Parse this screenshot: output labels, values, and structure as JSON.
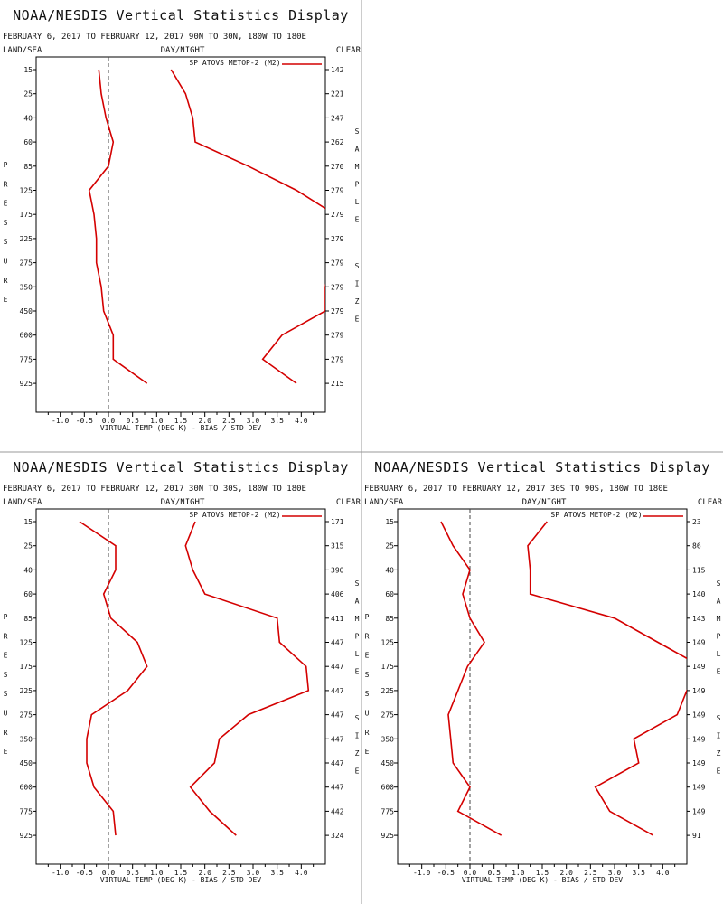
{
  "theme": {
    "series_color": "#d40000"
  },
  "panels": [
    {
      "title": "NOAA/NESDIS Vertical Statistics Display",
      "subtitle": "FEBRUARY 6, 2017 TO FEBRUARY 12, 2017 90N TO 30N, 180W TO 180E",
      "labels": {
        "left": "LAND/SEA",
        "center": "DAY/NIGHT",
        "right": "CLEAR"
      },
      "legend": "SP ATOVS METOP-2 (M2)",
      "ylabel": "PRESSURE",
      "ylabel2": "SAMPLE SIZE",
      "xlabel": "VIRTUAL TEMP (DEG K) - BIAS / STD DEV",
      "chart_data": {
        "type": "line",
        "pressure_levels": [
          "15",
          "25",
          "40",
          "60",
          "85",
          "125",
          "175",
          "225",
          "275",
          "350",
          "450",
          "600",
          "775",
          "925"
        ],
        "xlim": [
          -1.5,
          4.5
        ],
        "xticks": [
          "-1.0",
          "-0.5",
          "0.0",
          "0.5",
          "1.0",
          "1.5",
          "2.0",
          "2.5",
          "3.0",
          "3.5",
          "4.0"
        ],
        "sample_sizes": [
          "142",
          "221",
          "247",
          "262",
          "270",
          "279",
          "279",
          "279",
          "279",
          "279",
          "279",
          "279",
          "279",
          "215"
        ],
        "series": [
          {
            "kind": "bias",
            "values": [
              -0.2,
              -0.15,
              -0.05,
              0.1,
              0.0,
              -0.4,
              -0.3,
              -0.25,
              -0.25,
              -0.15,
              -0.1,
              0.1,
              0.1,
              0.8
            ]
          },
          {
            "kind": "std",
            "values": [
              1.3,
              1.6,
              1.75,
              1.8,
              2.9,
              3.9,
              4.7,
              4.7,
              4.6,
              4.5,
              4.5,
              3.6,
              3.2,
              3.9
            ]
          }
        ]
      }
    },
    {
      "title": "NOAA/NESDIS Vertical Statistics Display",
      "subtitle": "FEBRUARY 6, 2017 TO FEBRUARY 12, 2017 30N TO 30S, 180W TO 180E",
      "labels": {
        "left": "LAND/SEA",
        "center": "DAY/NIGHT",
        "right": "CLEAR"
      },
      "legend": "SP ATOVS METOP-2 (M2)",
      "ylabel": "PRESSURE",
      "ylabel2": "SAMPLE SIZE",
      "xlabel": "VIRTUAL TEMP (DEG K) - BIAS / STD DEV",
      "chart_data": {
        "type": "line",
        "pressure_levels": [
          "15",
          "25",
          "40",
          "60",
          "85",
          "125",
          "175",
          "225",
          "275",
          "350",
          "450",
          "600",
          "775",
          "925"
        ],
        "xlim": [
          -1.5,
          4.5
        ],
        "xticks": [
          "-1.0",
          "-0.5",
          "0.0",
          "0.5",
          "1.0",
          "1.5",
          "2.0",
          "2.5",
          "3.0",
          "3.5",
          "4.0"
        ],
        "sample_sizes": [
          "171",
          "315",
          "390",
          "406",
          "411",
          "447",
          "447",
          "447",
          "447",
          "447",
          "447",
          "447",
          "442",
          "324"
        ],
        "series": [
          {
            "kind": "bias",
            "values": [
              -0.6,
              0.15,
              0.15,
              -0.1,
              0.05,
              0.6,
              0.8,
              0.4,
              -0.35,
              -0.45,
              -0.45,
              -0.3,
              0.1,
              0.15
            ]
          },
          {
            "kind": "std",
            "values": [
              1.8,
              1.6,
              1.75,
              2.0,
              3.5,
              3.55,
              4.1,
              4.15,
              2.9,
              2.3,
              2.2,
              1.7,
              2.1,
              2.65
            ]
          }
        ]
      }
    },
    {
      "title": "NOAA/NESDIS Vertical Statistics Display",
      "subtitle": "FEBRUARY 6, 2017 TO FEBRUARY 12, 2017 30S TO 90S, 180W TO 180E",
      "labels": {
        "left": "LAND/SEA",
        "center": "DAY/NIGHT",
        "right": "CLEAR"
      },
      "legend": "SP ATOVS METOP-2 (M2)",
      "ylabel": "PRESSURE",
      "ylabel2": "SAMPLE SIZE",
      "xlabel": "VIRTUAL TEMP (DEG K) - BIAS / STD DEV",
      "chart_data": {
        "type": "line",
        "pressure_levels": [
          "15",
          "25",
          "40",
          "60",
          "85",
          "125",
          "175",
          "225",
          "275",
          "350",
          "450",
          "600",
          "775",
          "925"
        ],
        "xlim": [
          -1.5,
          4.5
        ],
        "xticks": [
          "-1.0",
          "-0.5",
          "0.0",
          "0.5",
          "1.0",
          "1.5",
          "2.0",
          "2.5",
          "3.0",
          "3.5",
          "4.0"
        ],
        "sample_sizes": [
          "23",
          "86",
          "115",
          "140",
          "143",
          "149",
          "149",
          "149",
          "149",
          "149",
          "149",
          "149",
          "149",
          "91"
        ],
        "series": [
          {
            "kind": "bias",
            "values": [
              -0.6,
              -0.35,
              0.0,
              -0.15,
              0.0,
              0.3,
              -0.05,
              -0.25,
              -0.45,
              -0.4,
              -0.35,
              0.0,
              -0.25,
              0.65
            ]
          },
          {
            "kind": "std",
            "values": [
              1.6,
              1.2,
              1.25,
              1.25,
              3.0,
              3.9,
              4.8,
              4.5,
              4.3,
              3.4,
              3.5,
              2.6,
              2.9,
              3.8
            ]
          }
        ]
      }
    }
  ]
}
